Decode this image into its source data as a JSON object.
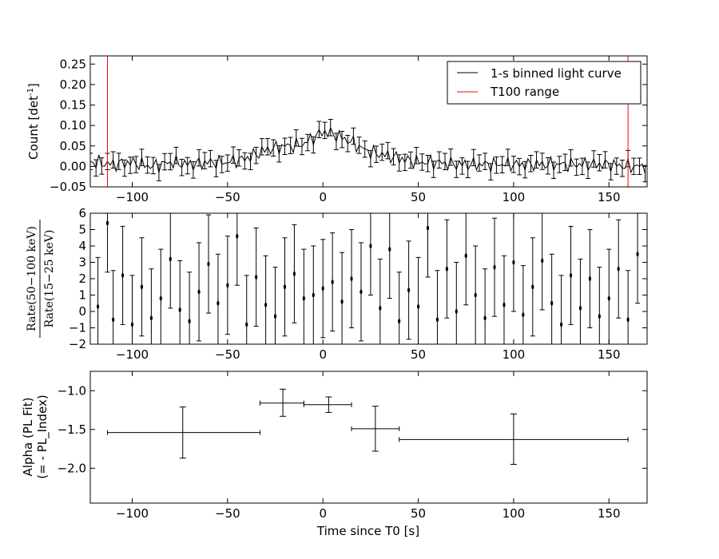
{
  "chart_data": [
    {
      "type": "line",
      "ylabel_main": "Count [det",
      "ylabel_sup": "-1",
      "ylabel_end": "]",
      "xlim": [
        -122,
        170
      ],
      "ylim": [
        -0.05,
        0.27
      ],
      "xticks": [
        -100,
        -50,
        0,
        50,
        100,
        150
      ],
      "yticks": [
        -0.05,
        0.0,
        0.05,
        0.1,
        0.15,
        0.2,
        0.25
      ],
      "ytick_labels": [
        "−0.05",
        "0.00",
        "0.05",
        "0.10",
        "0.15",
        "0.20",
        "0.25"
      ],
      "grid": false,
      "legend_position": "top-right",
      "series": [
        {
          "name": "1-s binned light curve",
          "color": "#000000",
          "x": [
            -120,
            -110,
            -100,
            -90,
            -80,
            -70,
            -60,
            -50,
            -45,
            -40,
            -35,
            -30,
            -25,
            -20,
            -15,
            -10,
            -5,
            0,
            5,
            10,
            15,
            20,
            25,
            30,
            35,
            40,
            45,
            50,
            60,
            70,
            80,
            90,
            100,
            110,
            120,
            130,
            140,
            150,
            160,
            168
          ],
          "y": [
            0.01,
            0.005,
            0.01,
            0.0,
            0.01,
            0.005,
            0.01,
            0.01,
            0.015,
            0.02,
            0.03,
            0.04,
            0.045,
            0.05,
            0.05,
            0.055,
            0.07,
            0.085,
            0.08,
            0.07,
            0.06,
            0.045,
            0.035,
            0.03,
            0.025,
            0.02,
            0.015,
            0.01,
            0.01,
            0.005,
            0.005,
            0.005,
            0.005,
            0.005,
            0.005,
            0.005,
            0.005,
            0.005,
            0.0,
            0.0
          ],
          "err": 0.02
        },
        {
          "name": "T100 range",
          "color": "#ff0000",
          "vlines": [
            -113,
            160
          ]
        }
      ]
    },
    {
      "type": "scatter",
      "ylabel_num": "Rate(50−100 keV)",
      "ylabel_den": "Rate(15−25 keV)",
      "xlim": [
        -122,
        170
      ],
      "ylim": [
        -2,
        6
      ],
      "xticks": [
        -100,
        -50,
        0,
        50,
        100,
        150
      ],
      "yticks": [
        -2,
        -1,
        0,
        1,
        2,
        3,
        4,
        5,
        6
      ],
      "ytick_labels": [
        "−2",
        "−1",
        "0",
        "1",
        "2",
        "3",
        "4",
        "5",
        "6"
      ],
      "grid": false,
      "series": [
        {
          "color": "#000000",
          "x": [
            -118,
            -113,
            -110,
            -105,
            -100,
            -95,
            -90,
            -85,
            -80,
            -75,
            -70,
            -65,
            -60,
            -55,
            -50,
            -45,
            -40,
            -35,
            -30,
            -25,
            -20,
            -15,
            -10,
            -5,
            0,
            5,
            10,
            15,
            20,
            25,
            30,
            35,
            40,
            45,
            50,
            55,
            60,
            65,
            70,
            75,
            80,
            85,
            90,
            95,
            100,
            105,
            110,
            115,
            120,
            125,
            130,
            135,
            140,
            145,
            150,
            155,
            160,
            165
          ],
          "y": [
            0.3,
            5.4,
            -0.5,
            2.2,
            -0.8,
            1.5,
            -0.4,
            0.8,
            3.2,
            0.1,
            -0.6,
            1.2,
            2.9,
            0.5,
            1.6,
            4.6,
            -0.8,
            2.1,
            0.4,
            -0.3,
            1.5,
            2.3,
            0.8,
            1.0,
            1.4,
            1.8,
            0.6,
            2.0,
            1.2,
            4.0,
            0.2,
            3.8,
            -0.6,
            1.3,
            0.3,
            5.1,
            -0.5,
            2.6,
            0.0,
            3.4,
            1.0,
            -0.4,
            2.7,
            0.4,
            3.0,
            -0.2,
            1.5,
            3.1,
            0.5,
            -0.8,
            2.2,
            0.2,
            2.0,
            -0.3,
            0.8,
            2.6,
            -0.5,
            3.5
          ],
          "err": 3.0
        }
      ]
    },
    {
      "type": "scatter",
      "xlabel": "Time since T0 [s]",
      "ylabel_line1": "Alpha (PL Fit)",
      "ylabel_line2": "(= - PL_Index)",
      "xlim": [
        -122,
        170
      ],
      "ylim": [
        -2.45,
        -0.75
      ],
      "xticks": [
        -100,
        -50,
        0,
        50,
        100,
        150
      ],
      "xtick_labels": [
        "−100",
        "−50",
        "0",
        "50",
        "100",
        "150"
      ],
      "yticks": [
        -2.0,
        -1.5,
        -1.0
      ],
      "ytick_labels": [
        "−2.0",
        "−1.5",
        "−1.0"
      ],
      "grid": false,
      "series": [
        {
          "color": "#000000",
          "points": [
            {
              "x": -73.5,
              "xlo": -113,
              "xhi": -33,
              "y": -1.54,
              "ylo": -1.87,
              "yhi": -1.21
            },
            {
              "x": -21,
              "xlo": -33,
              "xhi": -10,
              "y": -1.16,
              "ylo": -1.33,
              "yhi": -0.98
            },
            {
              "x": 3,
              "xlo": -10,
              "xhi": 15,
              "y": -1.18,
              "ylo": -1.28,
              "yhi": -1.08
            },
            {
              "x": 27.5,
              "xlo": 15,
              "xhi": 40,
              "y": -1.49,
              "ylo": -1.78,
              "yhi": -1.2
            },
            {
              "x": 100,
              "xlo": 40,
              "xhi": 160,
              "y": -1.63,
              "ylo": -1.95,
              "yhi": -1.3
            }
          ]
        }
      ]
    }
  ]
}
